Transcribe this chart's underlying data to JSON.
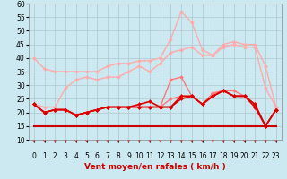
{
  "background_color": "#cce8f0",
  "grid_color": "#b0c8d0",
  "xlabel": "Vent moyen/en rafales ( km/h )",
  "x": [
    0,
    1,
    2,
    3,
    4,
    5,
    6,
    7,
    8,
    9,
    10,
    11,
    12,
    13,
    14,
    15,
    16,
    17,
    18,
    19,
    20,
    21,
    22,
    23
  ],
  "series": [
    {
      "name": "rafales_max",
      "color": "#ffaaaa",
      "linewidth": 1.0,
      "marker": "D",
      "markersize": 2.0,
      "y": [
        40,
        36,
        35,
        35,
        35,
        35,
        35,
        37,
        38,
        38,
        39,
        39,
        40,
        47,
        57,
        53,
        43,
        41,
        45,
        46,
        45,
        45,
        37,
        22
      ]
    },
    {
      "name": "rafales_mid",
      "color": "#ffaaaa",
      "linewidth": 1.0,
      "marker": "D",
      "markersize": 2.0,
      "y": [
        23,
        22,
        22,
        29,
        32,
        33,
        32,
        33,
        33,
        35,
        37,
        35,
        38,
        42,
        43,
        44,
        41,
        41,
        44,
        45,
        44,
        44,
        29,
        22
      ]
    },
    {
      "name": "vent_upper",
      "color": "#ff7777",
      "linewidth": 1.0,
      "marker": "D",
      "markersize": 2.0,
      "y": [
        23,
        20,
        21,
        21,
        19,
        20,
        21,
        22,
        22,
        22,
        22,
        22,
        22,
        25,
        26,
        26,
        23,
        27,
        28,
        28,
        26,
        23,
        15,
        21
      ]
    },
    {
      "name": "vent_lower",
      "color": "#ff7777",
      "linewidth": 1.0,
      "marker": "D",
      "markersize": 2.0,
      "y": [
        23,
        20,
        21,
        21,
        19,
        20,
        21,
        22,
        22,
        22,
        22,
        22,
        22,
        32,
        33,
        26,
        23,
        27,
        28,
        26,
        26,
        23,
        15,
        21
      ]
    },
    {
      "name": "vent_moyen1",
      "color": "#dd0000",
      "linewidth": 1.2,
      "marker": "D",
      "markersize": 2.0,
      "y": [
        23,
        20,
        21,
        21,
        19,
        20,
        21,
        22,
        22,
        22,
        22,
        22,
        22,
        22,
        26,
        26,
        23,
        26,
        28,
        26,
        26,
        23,
        15,
        21
      ]
    },
    {
      "name": "vent_moyen2",
      "color": "#dd0000",
      "linewidth": 1.2,
      "marker": "D",
      "markersize": 2.0,
      "y": [
        23,
        20,
        21,
        21,
        19,
        20,
        21,
        22,
        22,
        22,
        23,
        24,
        22,
        22,
        25,
        26,
        23,
        26,
        28,
        26,
        26,
        22,
        15,
        21
      ]
    },
    {
      "name": "flat_line",
      "color": "#cc0000",
      "linewidth": 1.5,
      "marker": null,
      "markersize": 0,
      "y": [
        15,
        15,
        15,
        15,
        15,
        15,
        15,
        15,
        15,
        15,
        15,
        15,
        15,
        15,
        15,
        15,
        15,
        15,
        15,
        15,
        15,
        15,
        15,
        15
      ]
    }
  ],
  "ylim": [
    10,
    60
  ],
  "yticks": [
    10,
    15,
    20,
    25,
    30,
    35,
    40,
    45,
    50,
    55,
    60
  ],
  "xlim": [
    -0.5,
    23.5
  ],
  "xticks": [
    0,
    1,
    2,
    3,
    4,
    5,
    6,
    7,
    8,
    9,
    10,
    11,
    12,
    13,
    14,
    15,
    16,
    17,
    18,
    19,
    20,
    21,
    22,
    23
  ],
  "xlabel_color": "#cc0000",
  "xlabel_fontsize": 6.5,
  "tick_fontsize": 5.5,
  "arrow_color": "#dd4444"
}
